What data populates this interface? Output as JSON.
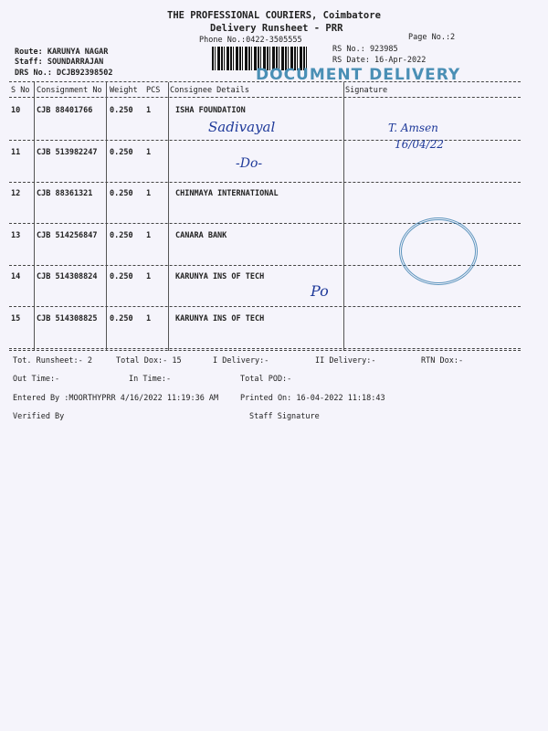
{
  "header": {
    "company": "THE PROFESSIONAL COURIERS, Coimbatore",
    "title": "Delivery Runsheet - PRR",
    "phone": "Phone No.:0422-3505555",
    "page": "Page No.:2",
    "rs_no": "RS No.: 923985",
    "rs_date": "RS Date: 16-Apr-2022",
    "route": "Route: KARUNYA NAGAR",
    "staff": "Staff: SOUNDARRAJAN",
    "drs": "DRS No.: DCJB92398502",
    "stamp": "DOCUMENT DELIVERY"
  },
  "table": {
    "headers": [
      "S No",
      "Consignment No",
      "Weight",
      "PCS",
      "Consignee Details",
      "Signature"
    ],
    "rows": [
      {
        "sno": "10",
        "cons": "CJB 88401766",
        "wt": "0.250",
        "pcs": "1",
        "consignee": "ISHA FOUNDATION"
      },
      {
        "sno": "11",
        "cons": "CJB 513982247",
        "wt": "0.250",
        "pcs": "1",
        "consignee": ""
      },
      {
        "sno": "12",
        "cons": "CJB 88361321",
        "wt": "0.250",
        "pcs": "1",
        "consignee": "CHINMAYA INTERNATIONAL"
      },
      {
        "sno": "13",
        "cons": "CJB 514256847",
        "wt": "0.250",
        "pcs": "1",
        "consignee": "CANARA BANK"
      },
      {
        "sno": "14",
        "cons": "CJB 514308824",
        "wt": "0.250",
        "pcs": "1",
        "consignee": "KARUNYA  INS OF TECH"
      },
      {
        "sno": "15",
        "cons": "CJB 514308825",
        "wt": "0.250",
        "pcs": "1",
        "consignee": "KARUNYA  INS OF TECH"
      }
    ]
  },
  "handwriting": {
    "r10": "Sadivayal",
    "r11": "-Do-",
    "sig": "T. Amsen",
    "date": "16/04/22",
    "r14": "Po"
  },
  "footer": {
    "tot_runsheet": "Tot. Runsheet:- 2",
    "total_dox": "Total Dox:-  15",
    "i_delivery": "I Delivery:-",
    "ii_delivery": "II Delivery:-",
    "rtn_dox": "RTN Dox:-",
    "out_time": "Out Time:-",
    "in_time": "In Time:-",
    "total_pod": "Total POD:-",
    "entered_by": "Entered By :MOORTHYPRR 4/16/2022 11:19:36 AM",
    "printed_on": "Printed On: 16-04-2022 11:18:43",
    "verified_by": "Verified By",
    "staff_signature": "Staff Signature"
  }
}
